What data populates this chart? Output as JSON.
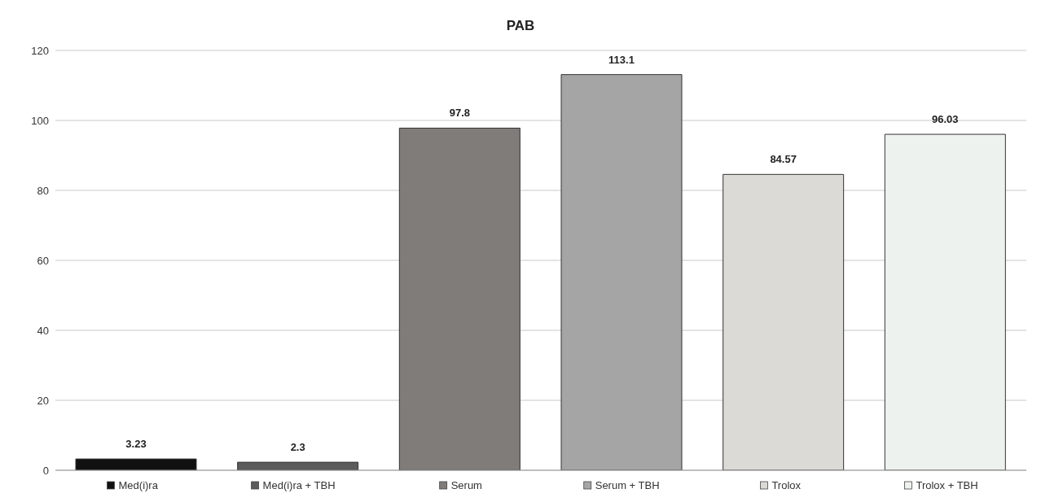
{
  "chart_data": {
    "type": "bar",
    "title": "PAB",
    "categories": [
      "Med(i)ra",
      "Med(i)ra + TBH",
      "Serum",
      "Serum + TBH",
      "Trolox",
      "Trolox + TBH"
    ],
    "values": [
      3.23,
      2.3,
      97.8,
      113.1,
      84.57,
      96.03
    ],
    "colors": [
      "#111111",
      "#5b5b5b",
      "#7f7c7a",
      "#a5a5a5",
      "#dcdad7",
      "#eef2ef"
    ],
    "ylim": [
      0,
      120
    ],
    "yticks": [
      0,
      20,
      40,
      60,
      80,
      100,
      120
    ],
    "grid": "y",
    "data_labels": true
  }
}
